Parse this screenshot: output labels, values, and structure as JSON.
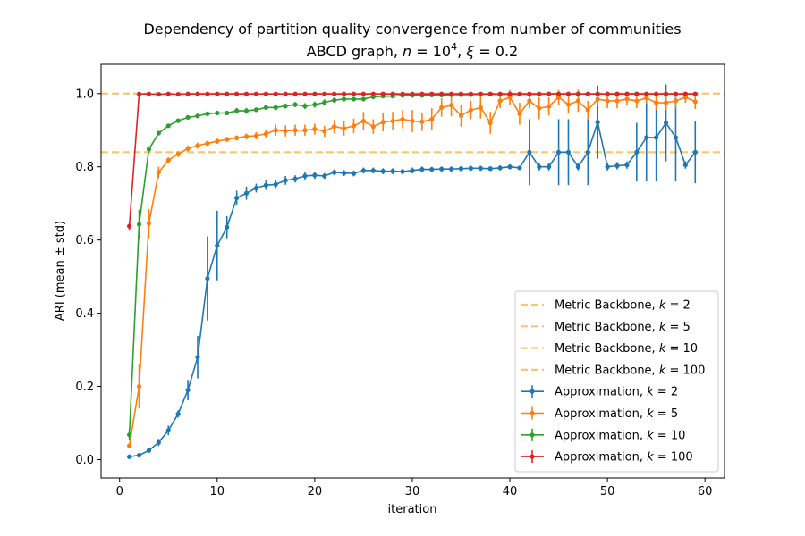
{
  "chart_data": {
    "type": "line",
    "title_line1": "Dependency of partition quality convergence from number of communities",
    "title_line2_prefix": "ABCD graph, ",
    "title_n": "n",
    "title_eq1": " = 10",
    "title_exp": "4",
    "title_sep": ", ",
    "title_xi": "ξ",
    "title_eq2": " = 0.2",
    "xlabel": "iteration",
    "ylabel": "ARI (mean ± std)",
    "xlim": [
      -1.9,
      62
    ],
    "ylim": [
      -0.05,
      1.08
    ],
    "xticks": [
      0,
      10,
      20,
      30,
      40,
      50,
      60
    ],
    "yticks": [
      0.0,
      0.2,
      0.4,
      0.6,
      0.8,
      1.0
    ],
    "ytick_labels": [
      "0.0",
      "0.2",
      "0.4",
      "0.6",
      "0.8",
      "1.0"
    ],
    "grid": false,
    "legend_position": "lower right",
    "hlines": [
      {
        "name_prefix": "Metric Backbone, ",
        "k": "100",
        "y": 1.0,
        "color": "#f5a623"
      },
      {
        "name_prefix": "Metric Backbone, ",
        "k": "2",
        "y": 0.84,
        "color": "#f5a623"
      }
    ],
    "legend": [
      {
        "name_prefix": "Metric Backbone, ",
        "k": "2",
        "kind": "dashed",
        "color": "#f5a623"
      },
      {
        "name_prefix": "Metric Backbone, ",
        "k": "5",
        "kind": "dashed",
        "color": "#f5a623"
      },
      {
        "name_prefix": "Metric Backbone, ",
        "k": "10",
        "kind": "dashed",
        "color": "#f5a623"
      },
      {
        "name_prefix": "Metric Backbone, ",
        "k": "100",
        "kind": "dashed",
        "color": "#f5a623"
      },
      {
        "name_prefix": "Approximation, ",
        "k": "2",
        "kind": "errorbar",
        "color": "#1f77b4"
      },
      {
        "name_prefix": "Approximation, ",
        "k": "5",
        "kind": "errorbar",
        "color": "#ff7f0e"
      },
      {
        "name_prefix": "Approximation, ",
        "k": "10",
        "kind": "errorbar",
        "color": "#2ca02c"
      },
      {
        "name_prefix": "Approximation, ",
        "k": "100",
        "kind": "errorbar",
        "color": "#d62728"
      }
    ],
    "series": [
      {
        "key": "k2",
        "color": "#1f77b4",
        "x": [
          1,
          2,
          3,
          4,
          5,
          6,
          7,
          8,
          9,
          10,
          11,
          12,
          13,
          14,
          15,
          16,
          17,
          18,
          19,
          20,
          21,
          22,
          23,
          24,
          25,
          26,
          27,
          28,
          29,
          30,
          31,
          32,
          33,
          34,
          35,
          36,
          37,
          38,
          39,
          40,
          41,
          42,
          43,
          44,
          45,
          46,
          47,
          48,
          49,
          50,
          51,
          52,
          53,
          54,
          55,
          56,
          57,
          58,
          59
        ],
        "y": [
          0.008,
          0.012,
          0.025,
          0.047,
          0.08,
          0.125,
          0.19,
          0.28,
          0.495,
          0.585,
          0.635,
          0.715,
          0.728,
          0.742,
          0.75,
          0.752,
          0.763,
          0.767,
          0.775,
          0.777,
          0.775,
          0.785,
          0.783,
          0.782,
          0.79,
          0.79,
          0.788,
          0.788,
          0.787,
          0.79,
          0.793,
          0.793,
          0.794,
          0.794,
          0.795,
          0.796,
          0.796,
          0.795,
          0.797,
          0.8,
          0.797,
          0.84,
          0.8,
          0.8,
          0.84,
          0.84,
          0.8,
          0.84,
          0.922,
          0.8,
          0.803,
          0.805,
          0.84,
          0.88,
          0.88,
          0.92,
          0.88,
          0.805,
          0.84
        ],
        "err": [
          0.004,
          0.004,
          0.006,
          0.01,
          0.013,
          0.01,
          0.028,
          0.058,
          0.115,
          0.095,
          0.03,
          0.02,
          0.018,
          0.012,
          0.013,
          0.012,
          0.012,
          0.01,
          0.01,
          0.01,
          0.008,
          0.008,
          0.008,
          0.008,
          0.008,
          0.008,
          0.008,
          0.008,
          0.007,
          0.008,
          0.008,
          0.007,
          0.007,
          0.007,
          0.007,
          0.007,
          0.007,
          0.006,
          0.007,
          0.007,
          0.006,
          0.09,
          0.01,
          0.01,
          0.09,
          0.09,
          0.01,
          0.09,
          0.1,
          0.01,
          0.01,
          0.01,
          0.08,
          0.12,
          0.12,
          0.105,
          0.12,
          0.01,
          0.085
        ]
      },
      {
        "key": "k5",
        "color": "#ff7f0e",
        "x": [
          1,
          2,
          3,
          4,
          5,
          6,
          7,
          8,
          9,
          10,
          11,
          12,
          13,
          14,
          15,
          16,
          17,
          18,
          19,
          20,
          21,
          22,
          23,
          24,
          25,
          26,
          27,
          28,
          29,
          30,
          31,
          32,
          33,
          34,
          35,
          36,
          37,
          38,
          39,
          40,
          41,
          42,
          43,
          44,
          45,
          46,
          47,
          48,
          49,
          50,
          51,
          52,
          53,
          54,
          55,
          56,
          57,
          58,
          59
        ],
        "y": [
          0.038,
          0.2,
          0.645,
          0.785,
          0.818,
          0.835,
          0.85,
          0.858,
          0.864,
          0.87,
          0.875,
          0.879,
          0.883,
          0.885,
          0.89,
          0.9,
          0.898,
          0.9,
          0.9,
          0.903,
          0.897,
          0.91,
          0.905,
          0.912,
          0.925,
          0.91,
          0.922,
          0.925,
          0.93,
          0.925,
          0.923,
          0.93,
          0.962,
          0.968,
          0.94,
          0.955,
          0.962,
          0.92,
          0.98,
          0.99,
          0.945,
          0.98,
          0.96,
          0.965,
          0.99,
          0.97,
          0.98,
          0.955,
          0.985,
          0.98,
          0.98,
          0.985,
          0.98,
          0.988,
          0.975,
          0.975,
          0.98,
          0.99,
          0.978
        ],
        "err": [
          0.005,
          0.06,
          0.04,
          0.015,
          0.008,
          0.008,
          0.008,
          0.008,
          0.007,
          0.007,
          0.007,
          0.007,
          0.008,
          0.01,
          0.012,
          0.015,
          0.015,
          0.015,
          0.015,
          0.015,
          0.015,
          0.018,
          0.02,
          0.02,
          0.025,
          0.02,
          0.025,
          0.025,
          0.025,
          0.03,
          0.025,
          0.03,
          0.025,
          0.03,
          0.03,
          0.025,
          0.03,
          0.03,
          0.02,
          0.02,
          0.03,
          0.02,
          0.03,
          0.025,
          0.02,
          0.025,
          0.03,
          0.025,
          0.02,
          0.02,
          0.02,
          0.015,
          0.02,
          0.015,
          0.02,
          0.02,
          0.02,
          0.015,
          0.02
        ]
      },
      {
        "key": "k10",
        "color": "#2ca02c",
        "x": [
          1,
          2,
          3,
          4,
          5,
          6,
          7,
          8,
          9,
          10,
          11,
          12,
          13,
          14,
          15,
          16,
          17,
          18,
          19,
          20,
          21,
          22,
          23,
          24,
          25,
          26,
          27,
          28,
          29,
          30,
          31,
          32,
          33,
          34,
          35,
          36,
          37,
          38,
          39,
          40,
          41,
          42,
          43,
          44,
          45,
          46,
          47,
          48,
          49,
          50,
          51,
          52,
          53,
          54,
          55,
          56,
          57,
          58,
          59
        ],
        "y": [
          0.068,
          0.643,
          0.848,
          0.892,
          0.912,
          0.926,
          0.935,
          0.939,
          0.945,
          0.947,
          0.947,
          0.953,
          0.953,
          0.956,
          0.962,
          0.962,
          0.966,
          0.97,
          0.966,
          0.97,
          0.976,
          0.982,
          0.985,
          0.985,
          0.985,
          0.991,
          0.993,
          0.993,
          0.995,
          0.995,
          0.995,
          0.996,
          0.996,
          0.997,
          0.997,
          0.997,
          0.998,
          0.998,
          0.998,
          0.998,
          0.998,
          0.998,
          0.998,
          0.999,
          0.999,
          0.999,
          0.999,
          0.999,
          0.999,
          0.999,
          0.999,
          0.999,
          0.999,
          0.999,
          0.999,
          0.999,
          0.999,
          0.999,
          0.999
        ],
        "err": [
          0.015,
          0.04,
          0.008,
          0.006,
          0.005,
          0.005,
          0.005,
          0.005,
          0.005,
          0.005,
          0.005,
          0.008,
          0.008,
          0.006,
          0.006,
          0.007,
          0.007,
          0.007,
          0.008,
          0.008,
          0.008,
          0.007,
          0.006,
          0.006,
          0.005,
          0.004,
          0.004,
          0.004,
          0.003,
          0.003,
          0.003,
          0.003,
          0.003,
          0.003,
          0.002,
          0.002,
          0.002,
          0.002,
          0.002,
          0.002,
          0.002,
          0.002,
          0.002,
          0.002,
          0.002,
          0.002,
          0.002,
          0.002,
          0.002,
          0.002,
          0.002,
          0.002,
          0.002,
          0.002,
          0.002,
          0.002,
          0.002,
          0.002,
          0.002
        ]
      },
      {
        "key": "k100",
        "color": "#d62728",
        "x": [
          1,
          2,
          3,
          4,
          5,
          6,
          7,
          8,
          9,
          10,
          11,
          12,
          13,
          14,
          15,
          16,
          17,
          18,
          19,
          20,
          21,
          22,
          23,
          24,
          25,
          26,
          27,
          28,
          29,
          30,
          31,
          32,
          33,
          34,
          35,
          36,
          37,
          38,
          39,
          40,
          41,
          42,
          43,
          44,
          45,
          46,
          47,
          48,
          49,
          50,
          51,
          52,
          53,
          54,
          55,
          56,
          57,
          58,
          59
        ],
        "y": [
          0.638,
          0.999,
          0.999,
          0.998,
          0.999,
          0.998,
          0.999,
          0.999,
          0.999,
          0.999,
          0.999,
          0.999,
          0.999,
          0.999,
          0.999,
          0.999,
          0.999,
          0.999,
          0.999,
          0.999,
          0.999,
          0.999,
          0.999,
          0.999,
          0.999,
          0.999,
          0.999,
          0.999,
          0.999,
          0.999,
          0.999,
          0.999,
          0.999,
          0.999,
          0.999,
          0.999,
          0.999,
          0.999,
          0.999,
          0.999,
          0.999,
          0.999,
          0.999,
          0.999,
          0.999,
          0.999,
          0.999,
          0.999,
          0.999,
          0.999,
          0.999,
          0.999,
          0.999,
          0.999,
          0.999,
          0.999,
          0.999,
          0.999,
          0.999
        ],
        "err": [
          0.01,
          0.001,
          0.001,
          0.001,
          0.001,
          0.001,
          0.001,
          0.001,
          0.001,
          0.001,
          0.001,
          0.001,
          0.001,
          0.001,
          0.001,
          0.001,
          0.001,
          0.001,
          0.001,
          0.001,
          0.001,
          0.001,
          0.001,
          0.001,
          0.001,
          0.001,
          0.001,
          0.001,
          0.001,
          0.001,
          0.001,
          0.001,
          0.001,
          0.001,
          0.001,
          0.001,
          0.001,
          0.001,
          0.001,
          0.001,
          0.001,
          0.001,
          0.001,
          0.001,
          0.001,
          0.001,
          0.001,
          0.001,
          0.001,
          0.001,
          0.001,
          0.001,
          0.001,
          0.001,
          0.001,
          0.001,
          0.001,
          0.001,
          0.001
        ]
      }
    ]
  }
}
